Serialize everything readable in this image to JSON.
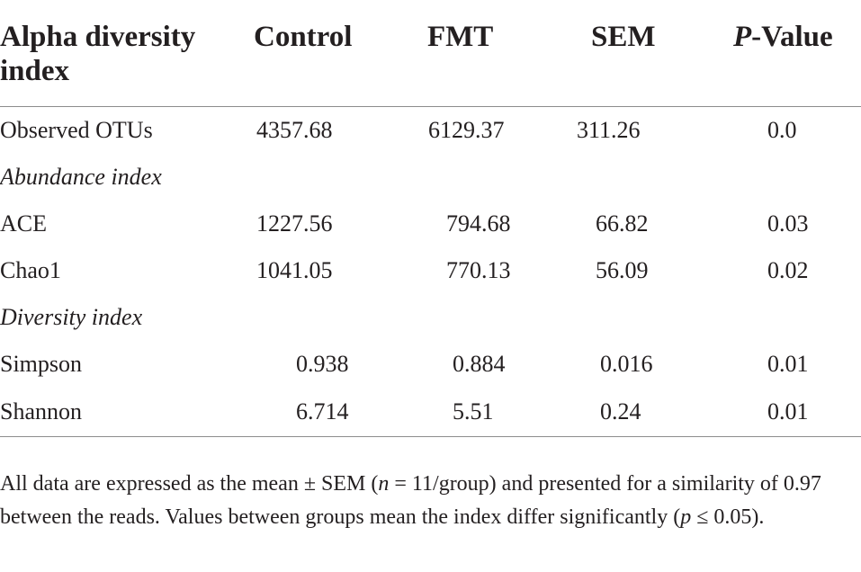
{
  "table": {
    "headers": {
      "index_line1": "Alpha diversity",
      "index_line2": "index",
      "control": "Control",
      "fmt": "FMT",
      "sem": "SEM",
      "p_prefix": "P",
      "p_suffix": "-Value"
    },
    "rows": [
      {
        "label": "Observed OTUs",
        "control": "4357.68",
        "fmt": "6129.37",
        "sem": "311.26",
        "p": "0.0"
      },
      {
        "section": "Abundance index"
      },
      {
        "label": "ACE",
        "control": "1227.56",
        "fmt": "794.68",
        "sem": "66.82",
        "p": "0.03"
      },
      {
        "label": "Chao1",
        "control": "1041.05",
        "fmt": "770.13",
        "sem": "56.09",
        "p": "0.02"
      },
      {
        "section": "Diversity index"
      },
      {
        "label": "Simpson",
        "control": "0.938",
        "fmt": "0.884",
        "sem": "0.016",
        "p": "0.01"
      },
      {
        "label": "Shannon",
        "control": "6.714",
        "fmt": "5.51",
        "sem": "0.24",
        "p": "0.01"
      }
    ]
  },
  "footnote": {
    "part1": "All data are expressed as the mean ± SEM (",
    "n_var": "n",
    "part2": " = 11/group) and presented for a similarity of 0.97 between the reads. Values between groups mean the index differ significantly (",
    "p_var": "p",
    "part3": " ≤ 0.05)."
  }
}
